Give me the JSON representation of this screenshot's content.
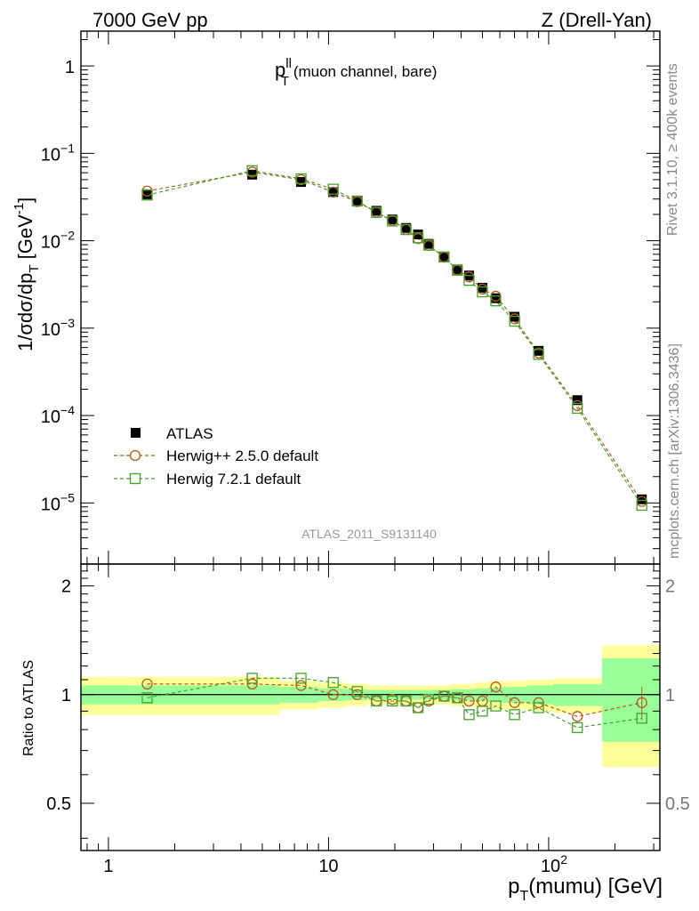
{
  "header": {
    "left": "7000 GeV pp",
    "right": "Z (Drell-Yan)"
  },
  "side_labels": {
    "rivet": "Rivet 3.1.10, ≥ 400k events",
    "mcplots": "mcplots.cern.ch [arXiv:1306.3436]"
  },
  "chart_data": {
    "type": "line",
    "title_main": "p",
    "title_sup": "ll",
    "title_sub": "T",
    "title_rest": " (muon channel, bare)",
    "analysis_id": "ATLAS_2011_S9131140",
    "xlabel": "p_T(mumu) [GeV]",
    "xlabel_parts": {
      "p": "p",
      "sub": "T",
      "rest": "(mumu) [GeV]"
    },
    "ylabel": "1/σdσ/dp_T [GeV^-1]",
    "ylabel_parts": {
      "pre": "1/σdσ/dp",
      "sub": "T",
      "mid": " [GeV",
      "sup": "-1",
      "post": "]"
    },
    "ratio_ylabel": "Ratio to ATLAS",
    "x_scale": "log",
    "xlim": [
      0.75,
      320
    ],
    "ylim": [
      2e-06,
      2.5
    ],
    "ratio_ylim": [
      0.37,
      2.3
    ],
    "x_tick_labels": [
      {
        "value": 1,
        "label": "1"
      },
      {
        "value": 10,
        "label": "10"
      },
      {
        "value": 100,
        "label": "10",
        "exp": "2"
      }
    ],
    "y_tick_labels": [
      {
        "value": 1,
        "base": "1",
        "exp": ""
      },
      {
        "value": 0.1,
        "base": "10",
        "exp": "−1"
      },
      {
        "value": 0.01,
        "base": "10",
        "exp": "−2"
      },
      {
        "value": 0.001,
        "base": "10",
        "exp": "−3"
      },
      {
        "value": 0.0001,
        "base": "10",
        "exp": "−4"
      },
      {
        "value": 1e-05,
        "base": "10",
        "exp": "−5"
      }
    ],
    "ratio_tick_labels": [
      {
        "value": 2,
        "label": "2"
      },
      {
        "value": 1,
        "label": "1"
      },
      {
        "value": 0.5,
        "label": "0.5"
      }
    ],
    "x": [
      1.5,
      4.5,
      7.5,
      10.5,
      13.5,
      16.5,
      19.5,
      22.5,
      25.5,
      28.5,
      33.5,
      38.5,
      43.5,
      50,
      57.5,
      70,
      90,
      135,
      265
    ],
    "bin_edges": [
      0,
      3,
      6,
      9,
      12,
      15,
      18,
      21,
      24,
      27,
      30,
      36,
      41,
      46,
      53,
      62,
      80,
      105,
      175,
      355
    ],
    "series": [
      {
        "name": "ATLAS",
        "color": "#000000",
        "marker": "filled-square",
        "values": [
          0.034,
          0.057,
          0.047,
          0.036,
          0.028,
          0.022,
          0.0175,
          0.014,
          0.0118,
          0.0092,
          0.0066,
          0.0047,
          0.004,
          0.0029,
          0.0022,
          0.00135,
          0.00055,
          0.00015,
          1.1e-05
        ],
        "band_outer": [
          0.12,
          0.12,
          0.09,
          0.08,
          0.07,
          0.06,
          0.06,
          0.06,
          0.06,
          0.06,
          0.06,
          0.07,
          0.07,
          0.08,
          0.09,
          0.09,
          0.1,
          0.11,
          0.37
        ],
        "band_inner": [
          0.06,
          0.06,
          0.05,
          0.04,
          0.035,
          0.03,
          0.03,
          0.03,
          0.03,
          0.03,
          0.03,
          0.035,
          0.035,
          0.04,
          0.045,
          0.05,
          0.06,
          0.07,
          0.26
        ]
      },
      {
        "name": "Herwig++ 2.5.0 default",
        "color": "#b35c1e",
        "marker": "open-circle",
        "values": [
          0.037,
          0.061,
          0.05,
          0.036,
          0.028,
          0.0212,
          0.017,
          0.0135,
          0.0106,
          0.0088,
          0.0065,
          0.0046,
          0.00385,
          0.0028,
          0.00232,
          0.00128,
          0.00052,
          0.00013,
          1.04e-05
        ],
        "ratio": [
          1.07,
          1.07,
          1.06,
          1.0,
          1.0,
          0.96,
          0.97,
          0.96,
          0.92,
          0.96,
          0.99,
          0.98,
          0.96,
          0.96,
          1.05,
          0.95,
          0.95,
          0.87,
          0.95
        ]
      },
      {
        "name": "Herwig 7.2.1 default",
        "color": "#44a12b",
        "marker": "open-square",
        "values": [
          0.0333,
          0.0633,
          0.0512,
          0.0389,
          0.0285,
          0.0211,
          0.0168,
          0.0134,
          0.0108,
          0.0089,
          0.0065,
          0.0046,
          0.00352,
          0.0026,
          0.00205,
          0.0012,
          0.0005,
          0.000121,
          9.4e-06
        ],
        "ratio": [
          0.98,
          1.11,
          1.11,
          1.08,
          1.02,
          0.96,
          0.96,
          0.96,
          0.92,
          0.97,
          0.99,
          0.98,
          0.88,
          0.9,
          0.93,
          0.88,
          0.92,
          0.81,
          0.86
        ]
      }
    ],
    "legend": {
      "placement": "bottom-left"
    },
    "colors": {
      "band_outer": "#ffff99",
      "band_inner": "#99ff99",
      "herwigpp": "#b35c1e",
      "herwig7": "#44a12b"
    }
  }
}
